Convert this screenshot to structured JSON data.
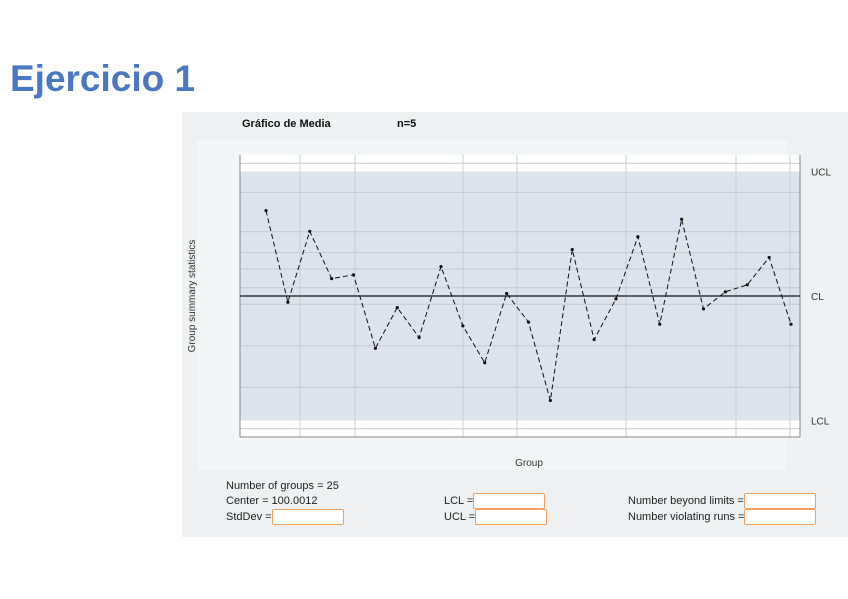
{
  "slide": {
    "title": "Ejercicio 1"
  },
  "chart_data": {
    "type": "line",
    "title": "Gráfico de Media",
    "subtitle": "n=5",
    "xlabel": "Group",
    "ylabel": "Group summary statistics",
    "x": [
      1,
      2,
      3,
      4,
      5,
      6,
      7,
      8,
      9,
      10,
      11,
      12,
      13,
      14,
      15,
      16,
      17,
      18,
      19,
      20,
      21,
      22,
      23,
      24,
      25
    ],
    "y_units": "standard errors from center line (estimated; no tick labels printed)",
    "values": [
      2.06,
      -0.15,
      1.56,
      0.42,
      0.51,
      -1.26,
      -0.28,
      -1.0,
      0.71,
      -0.72,
      -1.61,
      0.06,
      -0.63,
      -2.52,
      1.12,
      -1.05,
      -0.07,
      1.43,
      -0.68,
      1.85,
      -0.31,
      0.1,
      0.27,
      0.93,
      -0.68
    ],
    "control_lines": {
      "UCL": 3,
      "CL": 0,
      "LCL": -3
    },
    "line_labels": {
      "ucl": "UCL",
      "cl": "CL",
      "lcl": "LCL"
    },
    "ylim": [
      -3.4,
      3.4
    ],
    "grid": true,
    "line_style": "dashed",
    "colors": {
      "band": "#dde3ec",
      "line": "#111111",
      "panel": "#eff0f1"
    }
  },
  "summary": {
    "groups": "Number of groups = 25",
    "center": "Center = 100.0012",
    "stddev_label": "StdDev =",
    "lcl_label": "LCL =",
    "ucl_label": "UCL =",
    "beyond_label": "Number beyond limits =",
    "violating_label": "Number violating runs ="
  },
  "inputs": {
    "stddev": "",
    "lcl": "",
    "ucl": "",
    "beyond": "",
    "violating": ""
  }
}
